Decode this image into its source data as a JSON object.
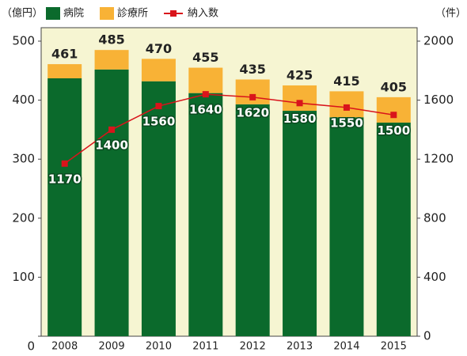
{
  "chart_data": {
    "type": "bar",
    "y_unit": "（億円）",
    "y2_unit": "（件）",
    "categories": [
      "2008",
      "2009",
      "2010",
      "2011",
      "2012",
      "2013",
      "2014",
      "2015"
    ],
    "series": [
      {
        "name": "病院",
        "color": "#0b6a2c",
        "values": [
          437,
          452,
          432,
          412,
          393,
          382,
          371,
          362
        ]
      },
      {
        "name": "診療所",
        "color": "#f8b236",
        "values": [
          24,
          33,
          38,
          43,
          42,
          43,
          44,
          43
        ]
      },
      {
        "name": "納入数",
        "type": "line",
        "axis": "y2",
        "color": "#d9141b",
        "values": [
          1170,
          1400,
          1560,
          1640,
          1620,
          1580,
          1550,
          1500
        ]
      }
    ],
    "totals": [
      461,
      485,
      470,
      455,
      435,
      425,
      415,
      405
    ],
    "ylim": [
      0,
      500
    ],
    "yticks": [
      0,
      100,
      200,
      300,
      400,
      500
    ],
    "y2lim": [
      0,
      2000
    ],
    "y2ticks": [
      0,
      400,
      800,
      1200,
      1600,
      2000
    ]
  }
}
